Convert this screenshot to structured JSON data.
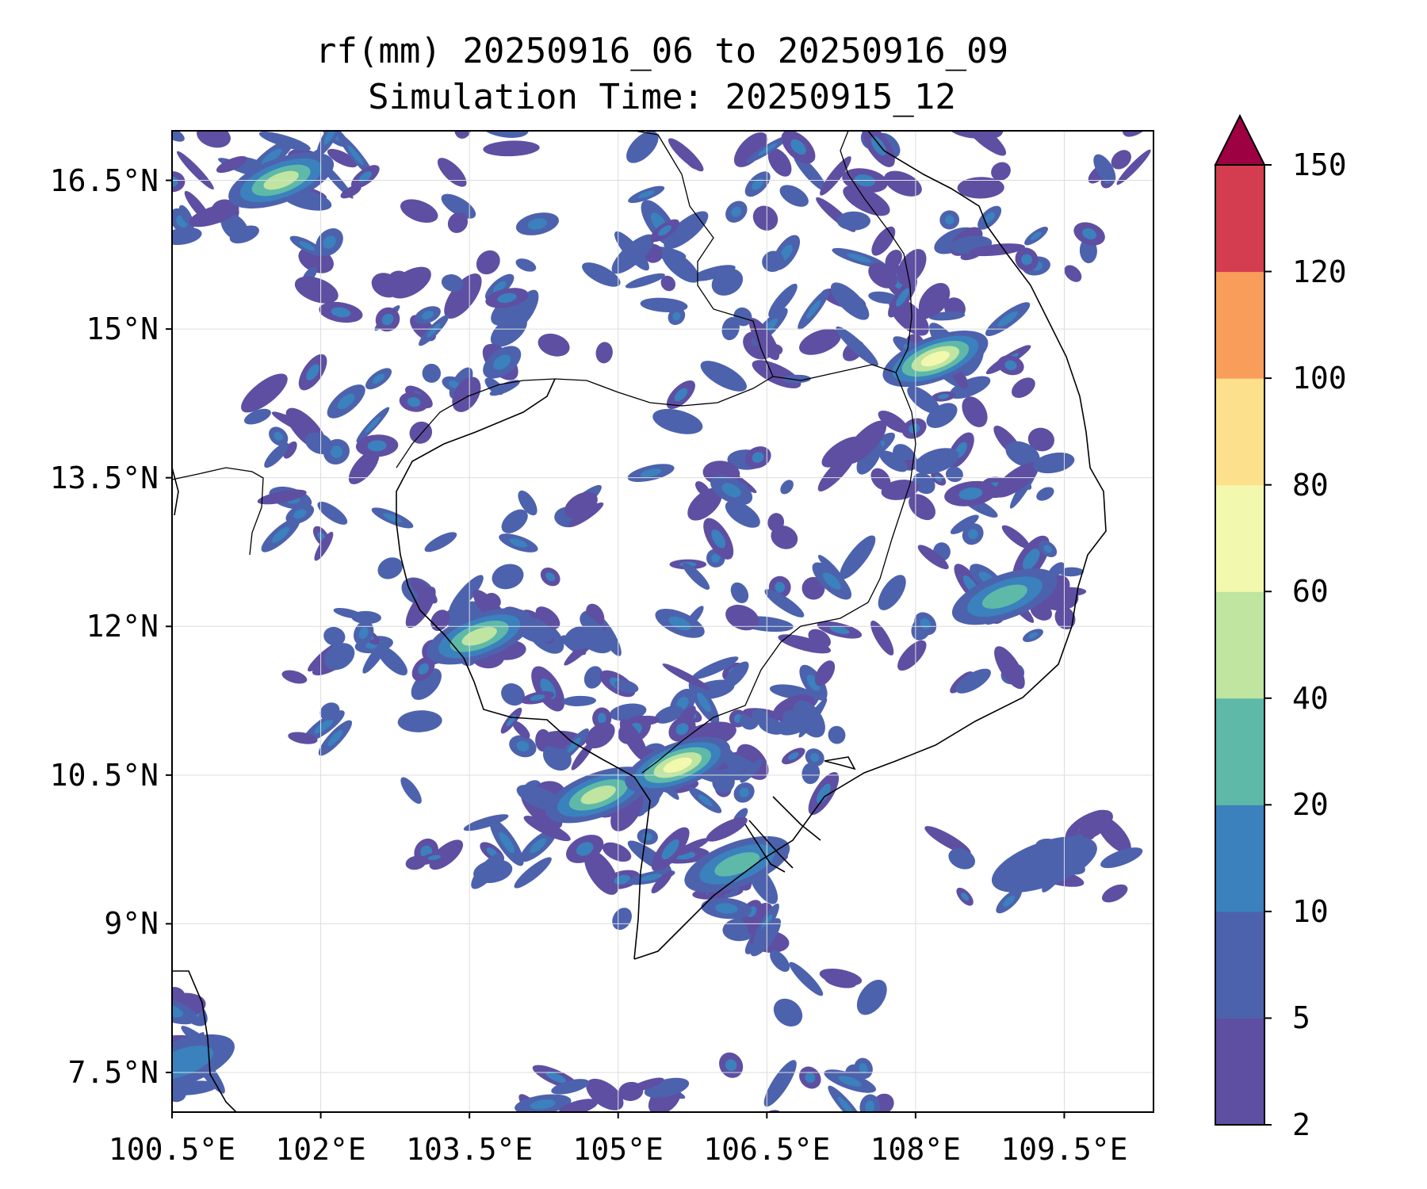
{
  "title": {
    "line1": "rf(mm) 20250916_06 to 20250916_09",
    "line2": "Simulation Time: 20250915_12"
  },
  "axes": {
    "x_ticks": [
      "100.5°E",
      "102°E",
      "103.5°E",
      "105°E",
      "106.5°E",
      "108°E",
      "109.5°E"
    ],
    "y_ticks": [
      "16.5°N",
      "15°N",
      "13.5°N",
      "12°N",
      "10.5°N",
      "9°N",
      "7.5°N"
    ],
    "lon_range": [
      100.5,
      110.4
    ],
    "lat_range": [
      7.1,
      17.0
    ],
    "grid": true
  },
  "colorbar": {
    "levels": [
      "2",
      "5",
      "10",
      "20",
      "40",
      "60",
      "80",
      "100",
      "120",
      "150"
    ],
    "colors": [
      "#5e4fa2",
      "#4d62ad",
      "#3a81bd",
      "#5eb9a9",
      "#bfe5a0",
      "#f2f8ae",
      "#fde08b",
      "#f99e5a",
      "#d43d4f",
      "#9e0142"
    ],
    "extend": "max"
  },
  "chart_data": {
    "type": "heatmap",
    "title": "rf(mm) 20250916_06 to 20250916_09",
    "subtitle": "Simulation Time: 20250915_12",
    "variable": "rf(mm)",
    "xlim": [
      100.5,
      110.4
    ],
    "ylim": [
      7.1,
      17.0
    ],
    "max_band_observed": "60-80",
    "rain_regions": [
      {
        "lon": 104.8,
        "lat": 10.3,
        "band": "40-60"
      },
      {
        "lon": 105.6,
        "lat": 10.6,
        "band": "60-80"
      },
      {
        "lon": 103.6,
        "lat": 11.9,
        "band": "40-60"
      },
      {
        "lon": 108.2,
        "lat": 14.7,
        "band": "60-80"
      },
      {
        "lon": 101.6,
        "lat": 16.5,
        "band": "40-60"
      },
      {
        "lon": 108.9,
        "lat": 12.3,
        "band": "20-40"
      },
      {
        "lon": 106.2,
        "lat": 9.6,
        "band": "20-40"
      },
      {
        "lon": 109.3,
        "lat": 9.6,
        "band": "5-10"
      },
      {
        "lon": 100.6,
        "lat": 7.6,
        "band": "10-20"
      }
    ]
  }
}
